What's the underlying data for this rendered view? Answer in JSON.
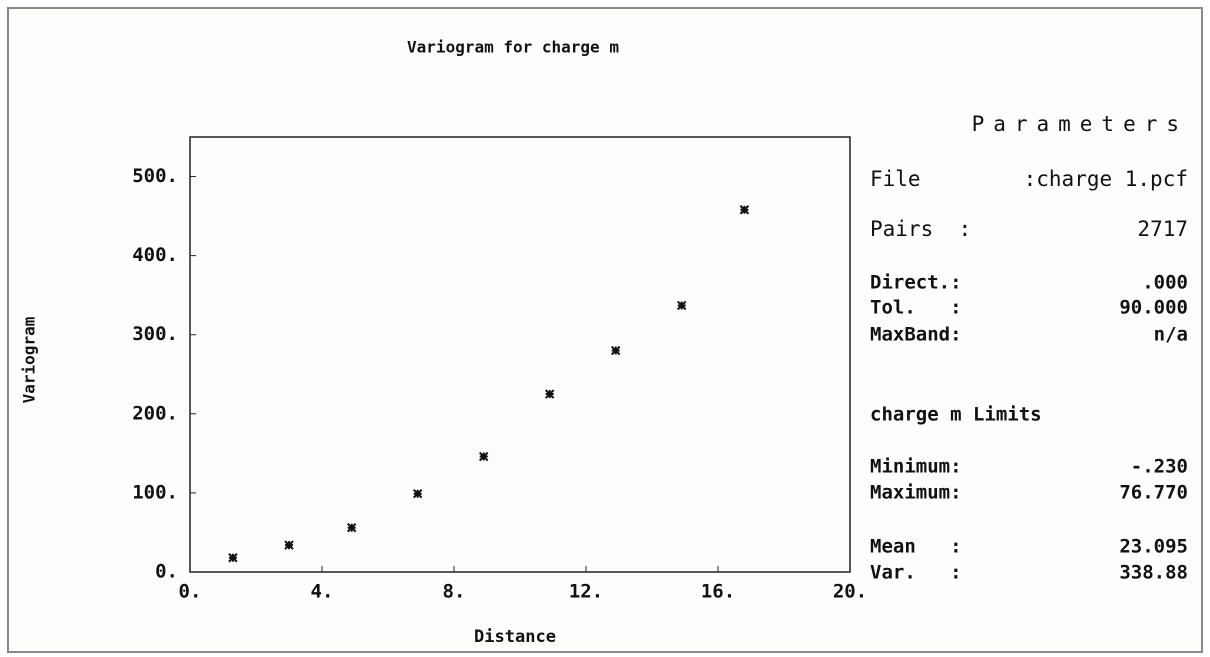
{
  "chart_data": {
    "type": "scatter",
    "title": "Variogram for charge m",
    "x_label": "Distance",
    "y_label": "Variogram",
    "x": [
      1.3,
      3.0,
      4.9,
      6.9,
      8.9,
      10.9,
      12.9,
      14.9,
      16.8
    ],
    "values": [
      18,
      34,
      56,
      99,
      146,
      225,
      280,
      337,
      458
    ],
    "color": "#111111",
    "xlim": [
      0,
      20
    ],
    "xticks": [
      {
        "value": 0,
        "label": "0."
      },
      {
        "value": 4,
        "label": "4."
      },
      {
        "value": 8,
        "label": "8."
      },
      {
        "value": 12,
        "label": "12."
      },
      {
        "value": 16,
        "label": "16."
      },
      {
        "value": 20,
        "label": "20."
      }
    ],
    "ylim": [
      0,
      550
    ],
    "yticks": [
      {
        "value": 0,
        "label": "0."
      },
      {
        "value": 100,
        "label": "100."
      },
      {
        "value": 200,
        "label": "200."
      },
      {
        "value": 300,
        "label": "300."
      },
      {
        "value": 400,
        "label": "400."
      },
      {
        "value": 500,
        "label": "500."
      }
    ],
    "grid": false
  },
  "parameters": {
    "title": "Parameters",
    "rows": [
      {
        "label": "File",
        "value": ":charge 1.pcf"
      },
      {
        "label": "Pairs  :",
        "value": "2717"
      },
      {
        "label": "Direct.:",
        "value": ".000"
      },
      {
        "label": "Tol.   :",
        "value": "90.000"
      },
      {
        "label": "MaxBand:",
        "value": "n/a"
      },
      {
        "label": "charge m Limits"
      },
      {
        "label": "Minimum:",
        "value": "-.230"
      },
      {
        "label": "Maximum:",
        "value": "76.770"
      },
      {
        "label": "Mean   :",
        "value": "23.095"
      },
      {
        "label": "Var.   :",
        "value": "338.88"
      }
    ]
  }
}
